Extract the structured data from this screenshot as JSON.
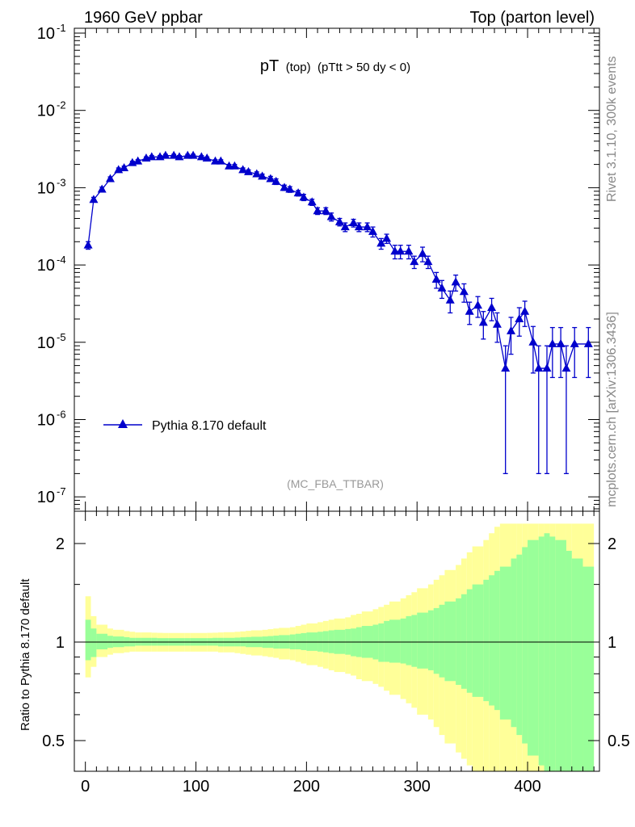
{
  "header": {
    "left": "1960 GeV ppbar",
    "right": "Top (parton level)"
  },
  "title": {
    "main": "pT",
    "sub1": "(top)",
    "sub2": "(pTtt > 50 dy < 0)"
  },
  "side": {
    "rivet": "Rivet 3.1.10,  300k events",
    "mcplots": "mcplots.cern.ch [arXiv:1306.3436]"
  },
  "analysis_label": "(MC_FBA_TTBAR)",
  "ratio_ylabel": "Ratio to Pythia 8.170 default",
  "colors": {
    "series": "#0000cc",
    "band_outer": "#ffff99",
    "band_inner": "#99ff99"
  },
  "chart_data": [
    {
      "type": "line",
      "yscale": "log",
      "xlim": [
        -10,
        465
      ],
      "ylim": [
        5e-08,
        0.1
      ],
      "ytick_labels": [
        "10^-1",
        "10^-2",
        "10^-3",
        "10^-4",
        "10^-5",
        "10^-6",
        "10^-7"
      ],
      "legend": {
        "position": "bottom-left",
        "entries": [
          "Pythia 8.170 default"
        ]
      },
      "series": [
        {
          "name": "Pythia 8.170 default",
          "marker": "triangle",
          "x": [
            2.5,
            7.5,
            15,
            22.5,
            30,
            35,
            42.5,
            47.5,
            55,
            60,
            67.5,
            72.5,
            80,
            85,
            92.5,
            97.5,
            105,
            110,
            117.5,
            122.5,
            130,
            135,
            142.5,
            147.5,
            155,
            160,
            167.5,
            172.5,
            180,
            185,
            192.5,
            197.5,
            205,
            210,
            217.5,
            222.5,
            230,
            235,
            242.5,
            247.5,
            255,
            260,
            267.5,
            272.5,
            280,
            285,
            292.5,
            297.5,
            305,
            310,
            317.5,
            322.5,
            330,
            335,
            342.5,
            347.5,
            355,
            360,
            367.5,
            372.5,
            380,
            385,
            392.5,
            397.5,
            405,
            410,
            417.5,
            422.5,
            430,
            435,
            442.5,
            455
          ],
          "y": [
            0.00018,
            0.0007,
            0.00095,
            0.0013,
            0.0017,
            0.0018,
            0.0021,
            0.0022,
            0.0024,
            0.0025,
            0.0025,
            0.0026,
            0.0026,
            0.0025,
            0.0026,
            0.0026,
            0.0025,
            0.0024,
            0.0022,
            0.0022,
            0.0019,
            0.0019,
            0.0017,
            0.0016,
            0.0015,
            0.0014,
            0.0013,
            0.0012,
            0.001,
            0.00095,
            0.00085,
            0.00075,
            0.00065,
            0.0005,
            0.0005,
            0.00042,
            0.00036,
            0.00031,
            0.00035,
            0.00031,
            0.00031,
            0.00027,
            0.00019,
            0.00022,
            0.00015,
            0.00015,
            0.00015,
            0.00011,
            0.00014,
            0.00011,
            6.5e-05,
            5e-05,
            3.5e-05,
            6e-05,
            4.5e-05,
            2.5e-05,
            3e-05,
            1.8e-05,
            2.8e-05,
            1.7e-05,
            4.6e-06,
            1.4e-05,
            2e-05,
            2.5e-05,
            1e-05,
            4.6e-06,
            4.6e-06,
            9.5e-06,
            9.5e-06,
            4.6e-06,
            9.5e-06,
            9.5e-06
          ],
          "yerr": [
            2e-05,
            5e-05,
            7e-05,
            8e-05,
            0.0001,
            0.0001,
            0.0001,
            0.0001,
            0.0001,
            0.0001,
            0.0001,
            0.0001,
            0.0001,
            0.0001,
            0.0001,
            0.0001,
            0.0001,
            0.0001,
            0.0001,
            0.0001,
            0.0001,
            0.0001,
            0.0001,
            0.0001,
            0.0001,
            0.0001,
            0.0001,
            0.0001,
            8e-05,
            8e-05,
            7e-05,
            7e-05,
            6e-05,
            5e-05,
            5e-05,
            5e-05,
            4e-05,
            4e-05,
            4e-05,
            4e-05,
            4e-05,
            4e-05,
            3e-05,
            3e-05,
            3e-05,
            3e-05,
            3e-05,
            2e-05,
            3e-05,
            2e-05,
            1.5e-05,
            1.3e-05,
            1.1e-05,
            1.4e-05,
            1.2e-05,
            8e-06,
            9e-06,
            7e-06,
            9e-06,
            7e-06,
            4.4e-06,
            7e-06,
            8e-06,
            9e-06,
            6e-06,
            4.4e-06,
            4.4e-06,
            6e-06,
            6e-06,
            4.4e-06,
            6e-06,
            6e-06
          ]
        }
      ]
    },
    {
      "type": "area",
      "xlim": [
        -10,
        465
      ],
      "ylim": [
        0.4,
        2.3
      ],
      "yticks": [
        0.5,
        1,
        2
      ],
      "ytick_labels": [
        "0.5",
        "1",
        "2"
      ],
      "xticks": [
        0,
        100,
        200,
        300,
        400
      ],
      "xtick_labels": [
        "0",
        "100",
        "200",
        "300",
        "400"
      ],
      "reference_line": 1,
      "bins_x": [
        [
          0,
          5
        ],
        [
          5,
          10
        ],
        [
          10,
          20
        ],
        [
          20,
          25
        ],
        [
          25,
          35
        ],
        [
          35,
          40
        ],
        [
          40,
          45
        ],
        [
          45,
          50
        ],
        [
          50,
          60
        ],
        [
          60,
          65
        ],
        [
          65,
          70
        ],
        [
          70,
          75
        ],
        [
          75,
          85
        ],
        [
          85,
          90
        ],
        [
          90,
          95
        ],
        [
          95,
          100
        ],
        [
          100,
          110
        ],
        [
          110,
          115
        ],
        [
          115,
          120
        ],
        [
          120,
          125
        ],
        [
          125,
          135
        ],
        [
          135,
          140
        ],
        [
          140,
          145
        ],
        [
          145,
          150
        ],
        [
          150,
          160
        ],
        [
          160,
          165
        ],
        [
          165,
          170
        ],
        [
          170,
          175
        ],
        [
          175,
          185
        ],
        [
          185,
          190
        ],
        [
          190,
          195
        ],
        [
          195,
          200
        ],
        [
          200,
          210
        ],
        [
          210,
          215
        ],
        [
          215,
          220
        ],
        [
          220,
          225
        ],
        [
          225,
          235
        ],
        [
          235,
          240
        ],
        [
          240,
          245
        ],
        [
          245,
          250
        ],
        [
          250,
          260
        ],
        [
          260,
          265
        ],
        [
          265,
          270
        ],
        [
          270,
          275
        ],
        [
          275,
          285
        ],
        [
          285,
          290
        ],
        [
          290,
          295
        ],
        [
          295,
          300
        ],
        [
          300,
          310
        ],
        [
          310,
          315
        ],
        [
          315,
          320
        ],
        [
          320,
          325
        ],
        [
          325,
          335
        ],
        [
          335,
          340
        ],
        [
          340,
          345
        ],
        [
          345,
          350
        ],
        [
          350,
          360
        ],
        [
          360,
          365
        ],
        [
          365,
          370
        ],
        [
          370,
          375
        ],
        [
          375,
          385
        ],
        [
          385,
          390
        ],
        [
          390,
          395
        ],
        [
          395,
          400
        ],
        [
          400,
          410
        ],
        [
          410,
          415
        ],
        [
          415,
          420
        ],
        [
          420,
          425
        ],
        [
          425,
          435
        ],
        [
          435,
          440
        ],
        [
          440,
          450
        ],
        [
          450,
          460
        ]
      ],
      "series": [
        {
          "name": "inner band",
          "low": [
            0.88,
            0.9,
            0.95,
            0.96,
            0.965,
            0.97,
            0.97,
            0.975,
            0.975,
            0.975,
            0.975,
            0.975,
            0.975,
            0.975,
            0.975,
            0.975,
            0.975,
            0.975,
            0.975,
            0.97,
            0.97,
            0.97,
            0.97,
            0.965,
            0.965,
            0.96,
            0.96,
            0.955,
            0.955,
            0.95,
            0.95,
            0.945,
            0.94,
            0.935,
            0.93,
            0.925,
            0.92,
            0.915,
            0.905,
            0.9,
            0.895,
            0.885,
            0.87,
            0.87,
            0.865,
            0.86,
            0.85,
            0.84,
            0.83,
            0.82,
            0.8,
            0.78,
            0.76,
            0.74,
            0.72,
            0.7,
            0.68,
            0.66,
            0.64,
            0.62,
            0.58,
            0.55,
            0.52,
            0.49,
            0.45,
            0.42,
            0.4,
            0.4,
            0.4,
            0.4,
            0.4,
            0.4
          ],
          "high": [
            1.17,
            1.1,
            1.06,
            1.045,
            1.04,
            1.035,
            1.03,
            1.03,
            1.03,
            1.03,
            1.028,
            1.028,
            1.028,
            1.028,
            1.028,
            1.028,
            1.028,
            1.028,
            1.03,
            1.03,
            1.03,
            1.032,
            1.034,
            1.036,
            1.038,
            1.04,
            1.043,
            1.046,
            1.05,
            1.055,
            1.06,
            1.065,
            1.07,
            1.075,
            1.08,
            1.086,
            1.09,
            1.096,
            1.1,
            1.11,
            1.12,
            1.13,
            1.14,
            1.16,
            1.17,
            1.18,
            1.2,
            1.21,
            1.23,
            1.25,
            1.27,
            1.3,
            1.33,
            1.36,
            1.4,
            1.45,
            1.5,
            1.55,
            1.6,
            1.65,
            1.7,
            1.8,
            1.85,
            1.95,
            2.05,
            2.1,
            2.15,
            2.1,
            2.05,
            1.9,
            1.8,
            1.7
          ]
        },
        {
          "name": "outer band",
          "low": [
            0.78,
            0.84,
            0.9,
            0.915,
            0.925,
            0.93,
            0.935,
            0.935,
            0.935,
            0.935,
            0.935,
            0.935,
            0.935,
            0.935,
            0.935,
            0.935,
            0.935,
            0.935,
            0.935,
            0.93,
            0.93,
            0.925,
            0.92,
            0.915,
            0.91,
            0.905,
            0.9,
            0.895,
            0.885,
            0.88,
            0.87,
            0.86,
            0.85,
            0.84,
            0.83,
            0.82,
            0.81,
            0.8,
            0.79,
            0.77,
            0.76,
            0.745,
            0.73,
            0.71,
            0.69,
            0.67,
            0.65,
            0.63,
            0.6,
            0.58,
            0.55,
            0.52,
            0.49,
            0.46,
            0.44,
            0.42,
            0.4,
            0.4,
            0.4,
            0.4,
            0.4,
            0.4,
            0.4,
            0.4,
            0.4,
            0.4,
            0.4,
            0.4,
            0.4,
            0.4,
            0.4,
            0.4
          ],
          "high": [
            1.38,
            1.2,
            1.13,
            1.1,
            1.09,
            1.08,
            1.075,
            1.07,
            1.07,
            1.068,
            1.067,
            1.066,
            1.066,
            1.066,
            1.066,
            1.066,
            1.066,
            1.067,
            1.068,
            1.07,
            1.072,
            1.075,
            1.078,
            1.082,
            1.086,
            1.09,
            1.095,
            1.1,
            1.105,
            1.11,
            1.12,
            1.13,
            1.14,
            1.15,
            1.16,
            1.17,
            1.18,
            1.19,
            1.21,
            1.22,
            1.24,
            1.26,
            1.28,
            1.3,
            1.33,
            1.36,
            1.39,
            1.42,
            1.46,
            1.5,
            1.55,
            1.6,
            1.66,
            1.72,
            1.8,
            1.88,
            1.96,
            2.05,
            2.15,
            2.25,
            2.3,
            2.3,
            2.3,
            2.3,
            2.3,
            2.3,
            2.3,
            2.3,
            2.3,
            2.3,
            2.3,
            2.3
          ]
        }
      ]
    }
  ]
}
